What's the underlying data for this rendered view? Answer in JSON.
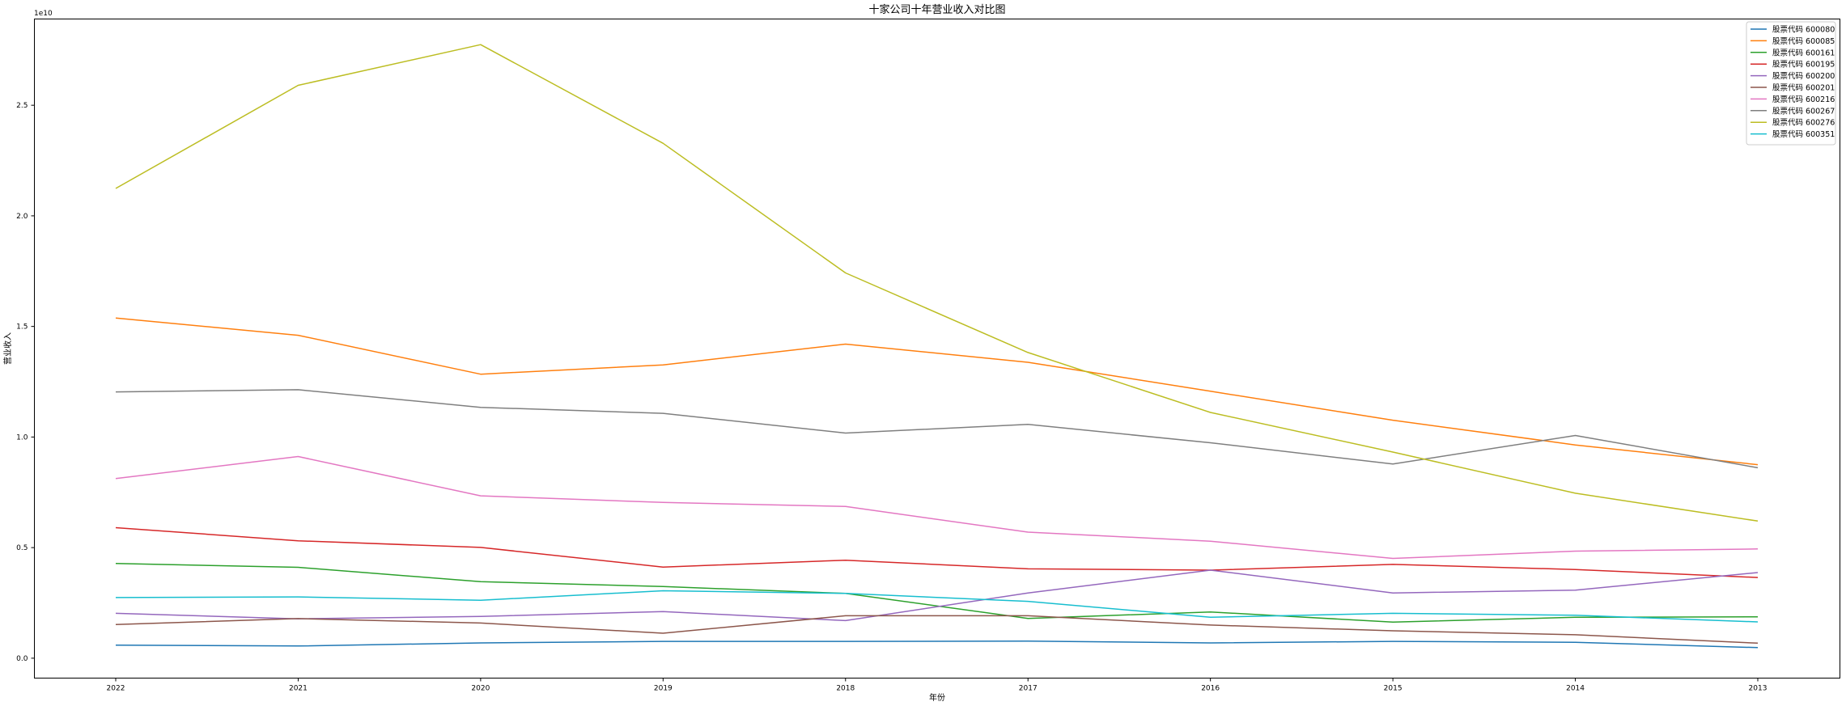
{
  "chart_data": {
    "type": "line",
    "title": "十家公司十年营业收入对比图",
    "xlabel": "年份",
    "ylabel": "营业收入",
    "y_offset_text": "1e10",
    "categories": [
      "2022",
      "2021",
      "2020",
      "2019",
      "2018",
      "2017",
      "2016",
      "2015",
      "2014",
      "2013"
    ],
    "y_scale_multiplier": 10000000000,
    "y_ticks": [
      0.0,
      0.5,
      1.0,
      1.5,
      2.0,
      2.5
    ],
    "y_tick_labels": [
      "0.0",
      "0.5",
      "1.0",
      "1.5",
      "2.0",
      "2.5"
    ],
    "ylim": [
      -0.09,
      2.89
    ],
    "legend_position": "top-right",
    "grid": false,
    "series": [
      {
        "name": "股票代码 600080",
        "color": "#1f77b4",
        "values": [
          0.059,
          0.055,
          0.069,
          0.076,
          0.076,
          0.077,
          0.069,
          0.076,
          0.072,
          0.048
        ]
      },
      {
        "name": "股票代码 600085",
        "color": "#ff7f0e",
        "values": [
          1.538,
          1.46,
          1.284,
          1.326,
          1.42,
          1.338,
          1.207,
          1.076,
          0.964,
          0.875
        ]
      },
      {
        "name": "股票代码 600161",
        "color": "#2ca02c",
        "values": [
          0.428,
          0.411,
          0.346,
          0.324,
          0.293,
          0.18,
          0.209,
          0.163,
          0.185,
          0.187
        ]
      },
      {
        "name": "股票代码 600195",
        "color": "#d62728",
        "values": [
          0.59,
          0.531,
          0.501,
          0.412,
          0.443,
          0.404,
          0.398,
          0.424,
          0.401,
          0.365
        ]
      },
      {
        "name": "股票代码 600200",
        "color": "#9467bd",
        "values": [
          0.203,
          0.178,
          0.189,
          0.211,
          0.17,
          0.295,
          0.398,
          0.295,
          0.308,
          0.387
        ]
      },
      {
        "name": "股票代码 600201",
        "color": "#8c564b",
        "values": [
          0.152,
          0.179,
          0.159,
          0.113,
          0.192,
          0.192,
          0.15,
          0.124,
          0.106,
          0.068
        ]
      },
      {
        "name": "股票代码 600216",
        "color": "#e377c2",
        "values": [
          0.812,
          0.912,
          0.734,
          0.704,
          0.686,
          0.57,
          0.529,
          0.451,
          0.484,
          0.494
        ]
      },
      {
        "name": "股票代码 600267",
        "color": "#7f7f7f",
        "values": [
          1.204,
          1.214,
          1.134,
          1.107,
          1.018,
          1.057,
          0.974,
          0.878,
          1.007,
          0.861
        ]
      },
      {
        "name": "股票代码 600276",
        "color": "#bcbd22",
        "values": [
          2.124,
          2.59,
          2.774,
          2.328,
          1.742,
          1.382,
          1.111,
          0.932,
          0.746,
          0.62
        ]
      },
      {
        "name": "股票代码 600351",
        "color": "#17becf",
        "values": [
          0.274,
          0.277,
          0.262,
          0.305,
          0.293,
          0.257,
          0.185,
          0.203,
          0.194,
          0.164
        ]
      }
    ]
  }
}
